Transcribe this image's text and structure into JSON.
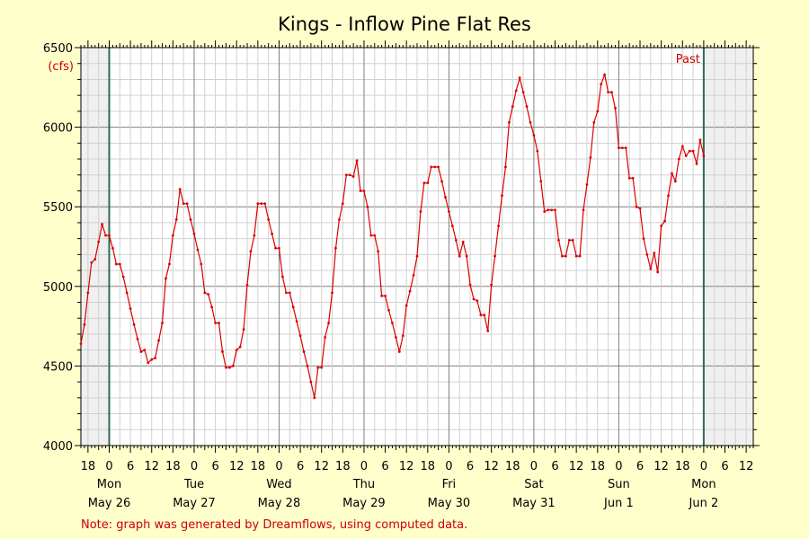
{
  "chart_data": {
    "type": "line",
    "title": "Kings - Inflow Pine Flat Res",
    "ylabel": "(cfs)",
    "ylim": [
      4000,
      6500
    ],
    "yticks": [
      4000,
      4500,
      5000,
      5500,
      6000,
      6500
    ],
    "y_minor_step": 100,
    "xlim_hours": [
      -8,
      182
    ],
    "hour_tick_labels": [
      "0",
      "6",
      "12",
      "18"
    ],
    "day_labels": [
      {
        "weekday": "Mon",
        "date": "May 26"
      },
      {
        "weekday": "Tue",
        "date": "May 27"
      },
      {
        "weekday": "Wed",
        "date": "May 28"
      },
      {
        "weekday": "Thu",
        "date": "May 29"
      },
      {
        "weekday": "Fri",
        "date": "May 30"
      },
      {
        "weekday": "Sat",
        "date": "May 31"
      },
      {
        "weekday": "Sun",
        "date": "Jun 1"
      },
      {
        "weekday": "Mon",
        "date": "Jun 2"
      }
    ],
    "past_label": "Past",
    "note": "Note: graph was generated by Dreamflows, using computed data.",
    "grid": true,
    "series": [
      {
        "color": "#dd0000",
        "points": [
          [
            -8,
            4640
          ],
          [
            -7,
            4760
          ],
          [
            -6,
            4960
          ],
          [
            -5,
            5150
          ],
          [
            -4,
            5170
          ],
          [
            -3,
            5280
          ],
          [
            -2,
            5390
          ],
          [
            -1,
            5320
          ],
          [
            0,
            5320
          ],
          [
            1,
            5240
          ],
          [
            2,
            5140
          ],
          [
            3,
            5140
          ],
          [
            4,
            5060
          ],
          [
            5,
            4960
          ],
          [
            6,
            4860
          ],
          [
            7,
            4760
          ],
          [
            8,
            4670
          ],
          [
            9,
            4590
          ],
          [
            10,
            4600
          ],
          [
            11,
            4520
          ],
          [
            12,
            4540
          ],
          [
            13,
            4550
          ],
          [
            14,
            4660
          ],
          [
            15,
            4770
          ],
          [
            16,
            5050
          ],
          [
            17,
            5140
          ],
          [
            18,
            5320
          ],
          [
            19,
            5420
          ],
          [
            20,
            5610
          ],
          [
            21,
            5520
          ],
          [
            22,
            5520
          ],
          [
            23,
            5420
          ],
          [
            24,
            5330
          ],
          [
            25,
            5230
          ],
          [
            26,
            5140
          ],
          [
            27,
            4960
          ],
          [
            28,
            4950
          ],
          [
            29,
            4870
          ],
          [
            30,
            4770
          ],
          [
            31,
            4770
          ],
          [
            32,
            4590
          ],
          [
            33,
            4490
          ],
          [
            34,
            4490
          ],
          [
            35,
            4500
          ],
          [
            36,
            4600
          ],
          [
            37,
            4620
          ],
          [
            38,
            4730
          ],
          [
            39,
            5010
          ],
          [
            40,
            5220
          ],
          [
            41,
            5320
          ],
          [
            42,
            5520
          ],
          [
            43,
            5520
          ],
          [
            44,
            5520
          ],
          [
            45,
            5420
          ],
          [
            46,
            5330
          ],
          [
            47,
            5240
          ],
          [
            48,
            5240
          ],
          [
            49,
            5060
          ],
          [
            50,
            4960
          ],
          [
            51,
            4960
          ],
          [
            52,
            4870
          ],
          [
            53,
            4780
          ],
          [
            54,
            4690
          ],
          [
            55,
            4590
          ],
          [
            56,
            4500
          ],
          [
            57,
            4400
          ],
          [
            58,
            4300
          ],
          [
            59,
            4490
          ],
          [
            60,
            4490
          ],
          [
            61,
            4680
          ],
          [
            62,
            4770
          ],
          [
            63,
            4960
          ],
          [
            64,
            5240
          ],
          [
            65,
            5420
          ],
          [
            66,
            5520
          ],
          [
            67,
            5700
          ],
          [
            68,
            5700
          ],
          [
            69,
            5690
          ],
          [
            70,
            5790
          ],
          [
            71,
            5600
          ],
          [
            72,
            5600
          ],
          [
            73,
            5500
          ],
          [
            74,
            5320
          ],
          [
            75,
            5320
          ],
          [
            76,
            5220
          ],
          [
            77,
            4940
          ],
          [
            78,
            4940
          ],
          [
            79,
            4850
          ],
          [
            80,
            4770
          ],
          [
            81,
            4680
          ],
          [
            82,
            4590
          ],
          [
            83,
            4690
          ],
          [
            84,
            4880
          ],
          [
            85,
            4970
          ],
          [
            86,
            5070
          ],
          [
            87,
            5190
          ],
          [
            88,
            5470
          ],
          [
            89,
            5650
          ],
          [
            90,
            5650
          ],
          [
            91,
            5750
          ],
          [
            92,
            5750
          ],
          [
            93,
            5750
          ],
          [
            94,
            5660
          ],
          [
            95,
            5560
          ],
          [
            96,
            5470
          ],
          [
            97,
            5380
          ],
          [
            98,
            5290
          ],
          [
            99,
            5190
          ],
          [
            100,
            5280
          ],
          [
            101,
            5190
          ],
          [
            102,
            5010
          ],
          [
            103,
            4920
          ],
          [
            104,
            4910
          ],
          [
            105,
            4820
          ],
          [
            106,
            4820
          ],
          [
            107,
            4720
          ],
          [
            108,
            5010
          ],
          [
            109,
            5190
          ],
          [
            110,
            5380
          ],
          [
            111,
            5570
          ],
          [
            112,
            5750
          ],
          [
            113,
            6030
          ],
          [
            114,
            6130
          ],
          [
            115,
            6230
          ],
          [
            116,
            6310
          ],
          [
            117,
            6220
          ],
          [
            118,
            6130
          ],
          [
            119,
            6030
          ],
          [
            120,
            5950
          ],
          [
            121,
            5850
          ],
          [
            122,
            5660
          ],
          [
            123,
            5470
          ],
          [
            124,
            5480
          ],
          [
            125,
            5480
          ],
          [
            126,
            5480
          ],
          [
            127,
            5290
          ],
          [
            128,
            5190
          ],
          [
            129,
            5190
          ],
          [
            130,
            5290
          ],
          [
            131,
            5290
          ],
          [
            132,
            5190
          ],
          [
            133,
            5190
          ],
          [
            134,
            5480
          ],
          [
            135,
            5640
          ],
          [
            136,
            5810
          ],
          [
            137,
            6030
          ],
          [
            138,
            6100
          ],
          [
            139,
            6270
          ],
          [
            140,
            6330
          ],
          [
            141,
            6220
          ],
          [
            142,
            6220
          ],
          [
            143,
            6120
          ],
          [
            144,
            5870
          ],
          [
            145,
            5870
          ],
          [
            146,
            5870
          ],
          [
            147,
            5680
          ],
          [
            148,
            5680
          ],
          [
            149,
            5500
          ],
          [
            150,
            5490
          ],
          [
            151,
            5300
          ],
          [
            152,
            5200
          ],
          [
            153,
            5110
          ],
          [
            154,
            5210
          ],
          [
            155,
            5090
          ],
          [
            156,
            5380
          ],
          [
            157,
            5410
          ],
          [
            158,
            5570
          ],
          [
            159,
            5710
          ],
          [
            160,
            5660
          ],
          [
            161,
            5800
          ],
          [
            162,
            5880
          ],
          [
            163,
            5820
          ],
          [
            164,
            5850
          ],
          [
            165,
            5850
          ],
          [
            166,
            5770
          ],
          [
            167,
            5920
          ],
          [
            168,
            5820
          ]
        ]
      }
    ]
  }
}
